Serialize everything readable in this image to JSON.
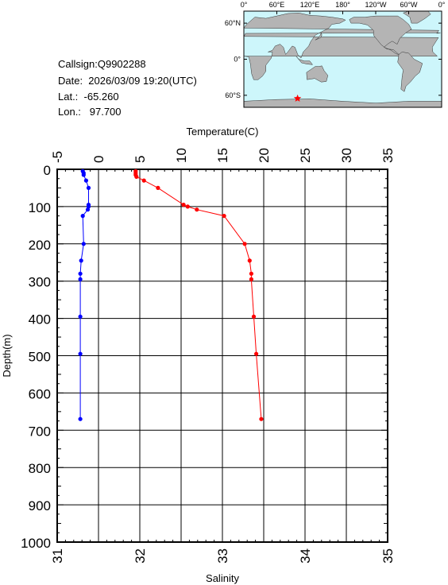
{
  "station": {
    "callsign": "Callsign:Q9902288",
    "date": "Date:  2026/03/09 19:20(UTC)",
    "lat": "Lat.:  -65.260",
    "lon": "Lon.:   97.700"
  },
  "map": {
    "top_ticks": [
      "0°",
      "60°E",
      "120°E",
      "180°",
      "120°W",
      "60°W",
      "0°"
    ],
    "side_ticks": [
      "60°N",
      "0°",
      "60°S"
    ],
    "marker": {
      "lon": 97.7,
      "lat": -65.26
    },
    "colors": {
      "ocean": "#cdf6fb",
      "land": "#b4b4b4",
      "marker": "#ff0000"
    }
  },
  "chart_data": {
    "type": "line",
    "title": "",
    "y_axis": {
      "label": "Depth(m)",
      "range": [
        0,
        1000
      ],
      "inverted": true,
      "ticks": [
        0,
        100,
        200,
        300,
        400,
        500,
        600,
        700,
        800,
        900,
        1000
      ]
    },
    "x_top": {
      "label": "Temperature(C)",
      "range": [
        -5,
        35
      ],
      "ticks": [
        -5,
        0,
        5,
        10,
        15,
        20,
        25,
        30,
        35
      ]
    },
    "x_bottom": {
      "label": "Salinity",
      "range": [
        31,
        35
      ],
      "ticks": [
        31,
        32,
        33,
        34,
        35
      ]
    },
    "grid": true,
    "series": [
      {
        "axis": "temperature",
        "color": "#0000ff",
        "points": [
          [
            -1.9,
            5
          ],
          [
            -1.8,
            10
          ],
          [
            -1.8,
            15
          ],
          [
            -1.5,
            30
          ],
          [
            -1.2,
            50
          ],
          [
            -1.2,
            95
          ],
          [
            -1.2,
            100
          ],
          [
            -1.3,
            108
          ],
          [
            -1.9,
            125
          ],
          [
            -1.8,
            200
          ],
          [
            -2.1,
            245
          ],
          [
            -2.2,
            280
          ],
          [
            -2.2,
            295
          ],
          [
            -2.2,
            395
          ],
          [
            -2.2,
            495
          ],
          [
            -2.2,
            670
          ]
        ]
      },
      {
        "axis": "salinity",
        "color": "#ff0000",
        "points": [
          [
            31.95,
            5
          ],
          [
            31.95,
            10
          ],
          [
            31.95,
            15
          ],
          [
            31.96,
            20
          ],
          [
            32.05,
            30
          ],
          [
            32.22,
            50
          ],
          [
            32.53,
            95
          ],
          [
            32.58,
            100
          ],
          [
            32.69,
            108
          ],
          [
            33.02,
            125
          ],
          [
            33.27,
            200
          ],
          [
            33.33,
            245
          ],
          [
            33.35,
            280
          ],
          [
            33.35,
            295
          ],
          [
            33.38,
            395
          ],
          [
            33.41,
            495
          ],
          [
            33.47,
            670
          ]
        ]
      }
    ]
  }
}
